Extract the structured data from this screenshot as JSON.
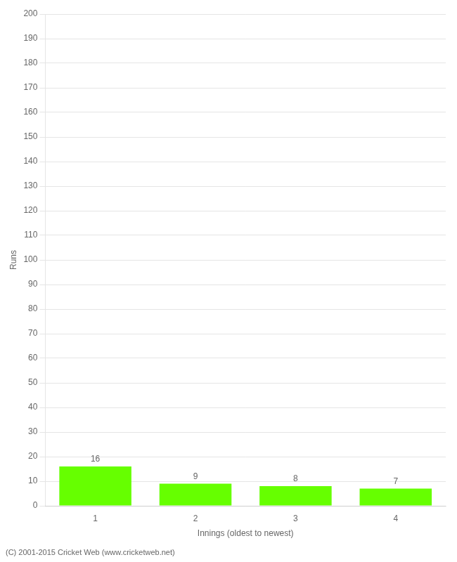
{
  "chart_data": {
    "type": "bar",
    "categories": [
      1,
      2,
      3,
      4
    ],
    "values": [
      16,
      9,
      8,
      7
    ],
    "color": "#66ff00",
    "xlabel": "Innings (oldest to newest)",
    "ylabel": "Runs",
    "ylim": [
      0,
      200
    ],
    "yticks": [
      0,
      10,
      20,
      30,
      40,
      50,
      60,
      70,
      80,
      90,
      100,
      110,
      120,
      130,
      140,
      150,
      160,
      170,
      180,
      190,
      200
    ],
    "grid": true,
    "data_labels": true,
    "annotations": [
      "(C) 2001-2015 Cricket Web (www.cricketweb.net)"
    ]
  }
}
